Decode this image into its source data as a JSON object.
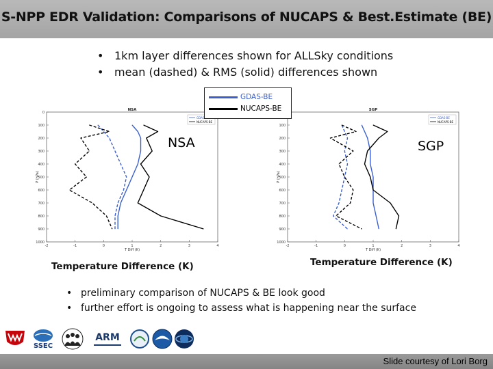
{
  "header": {
    "title": "S-NPP EDR Validation: Comparisons of NUCAPS & Best.Estimate (BE)"
  },
  "top_bullets": [
    "1km layer differences shown for ALLSky conditions",
    "mean (dashed) & RMS (solid) differences shown"
  ],
  "legend": {
    "entries": [
      {
        "label": "GDAS-BE",
        "color": "#3a5fcd"
      },
      {
        "label": "NUCAPS-BE",
        "color": "#000000"
      }
    ]
  },
  "panels": [
    {
      "site_label": "NSA",
      "axis_caption": "Temperature Difference (K)"
    },
    {
      "site_label": "SGP",
      "axis_caption": "Temperature Difference (K)"
    }
  ],
  "bottom_bullets": [
    "preliminary comparison of NUCAPS & BE look good",
    "further effort is ongoing to assess what is happening near the surface"
  ],
  "logos": [
    "WISCONSIN",
    "SSEC",
    "ARM",
    "NOAA",
    "JPSS"
  ],
  "footer": {
    "credit": "Slide courtesy of Lori Borg"
  },
  "chart_data": [
    {
      "type": "line",
      "title": "NSA",
      "xlabel": "T Diff (K)",
      "ylabel": "P (hPa)",
      "xlim": [
        -2,
        4
      ],
      "ylim": [
        1000,
        0
      ],
      "x_ticks": [
        -2,
        -1,
        0,
        1,
        2,
        3,
        4
      ],
      "y_ticks": [
        0,
        100,
        200,
        300,
        400,
        500,
        600,
        700,
        800,
        900,
        1000
      ],
      "legend_entries": [
        "GDAS-BE",
        "NUCAPS-BE"
      ],
      "series": [
        {
          "name": "GDAS-BE",
          "style": "solid",
          "color": "#3a5fcd",
          "x": [
            1.0,
            1.2,
            1.3,
            1.3,
            1.2,
            1.0,
            0.8,
            0.6,
            0.5,
            0.5
          ],
          "y": [
            100,
            150,
            200,
            300,
            400,
            500,
            600,
            700,
            800,
            900
          ]
        },
        {
          "name": "GDAS-BE",
          "style": "dashed",
          "color": "#3a5fcd",
          "x": [
            -0.2,
            0.0,
            0.2,
            0.4,
            0.6,
            0.8,
            0.7,
            0.5,
            0.4,
            0.4
          ],
          "y": [
            100,
            150,
            200,
            300,
            400,
            500,
            600,
            700,
            800,
            900
          ]
        },
        {
          "name": "NUCAPS-BE",
          "style": "solid",
          "color": "#000000",
          "x": [
            1.4,
            1.9,
            1.5,
            1.7,
            1.3,
            1.6,
            1.4,
            1.2,
            2.0,
            3.5
          ],
          "y": [
            100,
            150,
            200,
            300,
            400,
            500,
            600,
            700,
            800,
            900
          ]
        },
        {
          "name": "NUCAPS-BE",
          "style": "dashed",
          "color": "#000000",
          "x": [
            -0.5,
            0.2,
            -0.8,
            -0.5,
            -1.0,
            -0.6,
            -1.2,
            -0.4,
            0.1,
            0.3
          ],
          "y": [
            100,
            150,
            200,
            300,
            400,
            500,
            600,
            700,
            800,
            900
          ]
        }
      ]
    },
    {
      "type": "line",
      "title": "SGP",
      "xlabel": "T Diff (K)",
      "ylabel": "P (hPa)",
      "xlim": [
        -2,
        4
      ],
      "ylim": [
        1000,
        0
      ],
      "x_ticks": [
        -2,
        -1,
        0,
        1,
        2,
        3,
        4
      ],
      "y_ticks": [
        0,
        100,
        200,
        300,
        400,
        500,
        600,
        700,
        800,
        900,
        1000
      ],
      "legend_entries": [
        "GDAS-BE",
        "NUCAPS-BE"
      ],
      "series": [
        {
          "name": "GDAS-BE",
          "style": "solid",
          "color": "#3a5fcd",
          "x": [
            0.6,
            0.7,
            0.8,
            0.9,
            0.9,
            1.0,
            1.0,
            1.0,
            1.1,
            1.2
          ],
          "y": [
            100,
            150,
            200,
            300,
            400,
            500,
            600,
            700,
            800,
            900
          ]
        },
        {
          "name": "GDAS-BE",
          "style": "dashed",
          "color": "#3a5fcd",
          "x": [
            -0.1,
            0.0,
            0.1,
            0.0,
            0.1,
            0.0,
            -0.1,
            -0.2,
            -0.4,
            0.1
          ],
          "y": [
            100,
            150,
            200,
            300,
            400,
            500,
            600,
            700,
            800,
            900
          ]
        },
        {
          "name": "NUCAPS-BE",
          "style": "solid",
          "color": "#000000",
          "x": [
            1.0,
            1.5,
            1.2,
            0.8,
            0.7,
            0.9,
            1.0,
            1.6,
            1.9,
            1.8
          ],
          "y": [
            100,
            150,
            200,
            300,
            400,
            500,
            600,
            700,
            800,
            900
          ]
        },
        {
          "name": "NUCAPS-BE",
          "style": "dashed",
          "color": "#000000",
          "x": [
            -0.1,
            0.4,
            -0.5,
            0.3,
            -0.2,
            0.0,
            0.3,
            0.2,
            -0.3,
            0.6
          ],
          "y": [
            100,
            150,
            200,
            300,
            400,
            500,
            600,
            700,
            800,
            900
          ]
        }
      ]
    }
  ]
}
